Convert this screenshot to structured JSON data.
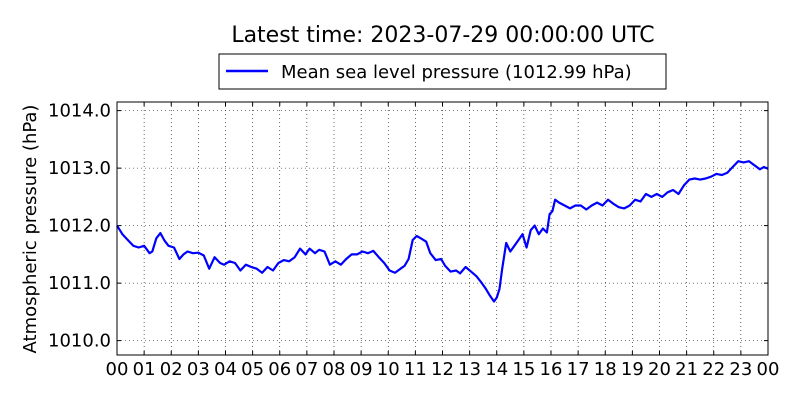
{
  "chart_data": {
    "type": "line",
    "title": "Latest time: 2023-07-29 00:00:00 UTC",
    "xlabel": "",
    "ylabel": "Atmospheric pressure (hPa)",
    "xlim": [
      0,
      24
    ],
    "ylim": [
      1009.75,
      1014.15
    ],
    "xticks": [
      0,
      1,
      2,
      3,
      4,
      5,
      6,
      7,
      8,
      9,
      10,
      11,
      12,
      13,
      14,
      15,
      16,
      17,
      18,
      19,
      20,
      21,
      22,
      23,
      24
    ],
    "xtick_labels": [
      "00",
      "01",
      "02",
      "03",
      "04",
      "05",
      "06",
      "07",
      "08",
      "09",
      "10",
      "11",
      "12",
      "13",
      "14",
      "15",
      "16",
      "17",
      "18",
      "19",
      "20",
      "21",
      "22",
      "23",
      "00"
    ],
    "yticks": [
      1010.0,
      1011.0,
      1012.0,
      1013.0,
      1014.0
    ],
    "ytick_labels": [
      "1010.0",
      "1011.0",
      "1012.0",
      "1013.0",
      "1014.0"
    ],
    "grid": true,
    "legend_position": "top-center",
    "series": [
      {
        "name": "Mean sea level pressure (1012.99 hPa)",
        "color": "#0000ff",
        "x": [
          0,
          0.2,
          0.4,
          0.6,
          0.8,
          1.0,
          1.2,
          1.3,
          1.45,
          1.6,
          1.75,
          1.9,
          2.1,
          2.3,
          2.45,
          2.6,
          2.8,
          3.0,
          3.2,
          3.4,
          3.6,
          3.8,
          3.95,
          4.15,
          4.35,
          4.55,
          4.75,
          4.95,
          5.15,
          5.35,
          5.55,
          5.75,
          5.95,
          6.15,
          6.35,
          6.55,
          6.75,
          6.95,
          7.1,
          7.3,
          7.45,
          7.65,
          7.85,
          8.05,
          8.25,
          8.45,
          8.65,
          8.85,
          9.05,
          9.25,
          9.45,
          9.65,
          9.85,
          10.05,
          10.25,
          10.45,
          10.6,
          10.75,
          10.9,
          11.05,
          11.2,
          11.4,
          11.55,
          11.75,
          11.95,
          12.1,
          12.3,
          12.5,
          12.65,
          12.85,
          13.05,
          13.25,
          13.45,
          13.6,
          13.75,
          13.9,
          14.0,
          14.1,
          14.2,
          14.35,
          14.5,
          14.65,
          14.8,
          14.95,
          15.1,
          15.25,
          15.4,
          15.55,
          15.7,
          15.85,
          15.95,
          16.05,
          16.15,
          16.3,
          16.5,
          16.7,
          16.9,
          17.1,
          17.3,
          17.5,
          17.7,
          17.9,
          18.1,
          18.3,
          18.5,
          18.7,
          18.9,
          19.1,
          19.3,
          19.5,
          19.7,
          19.9,
          20.1,
          20.3,
          20.5,
          20.7,
          20.9,
          21.1,
          21.3,
          21.5,
          21.7,
          21.9,
          22.1,
          22.3,
          22.5,
          22.7,
          22.9,
          23.1,
          23.3,
          23.5,
          23.7,
          23.85,
          24.0
        ],
        "y": [
          1012.0,
          1011.85,
          1011.75,
          1011.65,
          1011.62,
          1011.65,
          1011.52,
          1011.55,
          1011.78,
          1011.87,
          1011.74,
          1011.65,
          1011.62,
          1011.42,
          1011.5,
          1011.55,
          1011.52,
          1011.53,
          1011.48,
          1011.25,
          1011.45,
          1011.35,
          1011.32,
          1011.38,
          1011.35,
          1011.22,
          1011.32,
          1011.28,
          1011.25,
          1011.18,
          1011.28,
          1011.22,
          1011.35,
          1011.4,
          1011.38,
          1011.45,
          1011.6,
          1011.5,
          1011.6,
          1011.52,
          1011.58,
          1011.55,
          1011.32,
          1011.38,
          1011.32,
          1011.42,
          1011.5,
          1011.5,
          1011.55,
          1011.52,
          1011.56,
          1011.45,
          1011.35,
          1011.22,
          1011.18,
          1011.25,
          1011.3,
          1011.42,
          1011.75,
          1011.82,
          1011.78,
          1011.72,
          1011.52,
          1011.4,
          1011.42,
          1011.3,
          1011.2,
          1011.22,
          1011.17,
          1011.28,
          1011.2,
          1011.12,
          1011.0,
          1010.9,
          1010.78,
          1010.68,
          1010.75,
          1010.9,
          1011.25,
          1011.7,
          1011.55,
          1011.65,
          1011.75,
          1011.85,
          1011.62,
          1011.92,
          1012.0,
          1011.85,
          1011.95,
          1011.88,
          1012.2,
          1012.25,
          1012.45,
          1012.4,
          1012.35,
          1012.3,
          1012.35,
          1012.35,
          1012.28,
          1012.35,
          1012.4,
          1012.35,
          1012.45,
          1012.38,
          1012.32,
          1012.3,
          1012.35,
          1012.45,
          1012.42,
          1012.55,
          1012.5,
          1012.55,
          1012.5,
          1012.58,
          1012.62,
          1012.55,
          1012.7,
          1012.8,
          1012.82,
          1012.8,
          1012.82,
          1012.85,
          1012.9,
          1012.88,
          1012.92,
          1013.02,
          1013.12,
          1013.1,
          1013.12,
          1013.05,
          1012.98,
          1013.02,
          1012.99
        ]
      }
    ]
  }
}
